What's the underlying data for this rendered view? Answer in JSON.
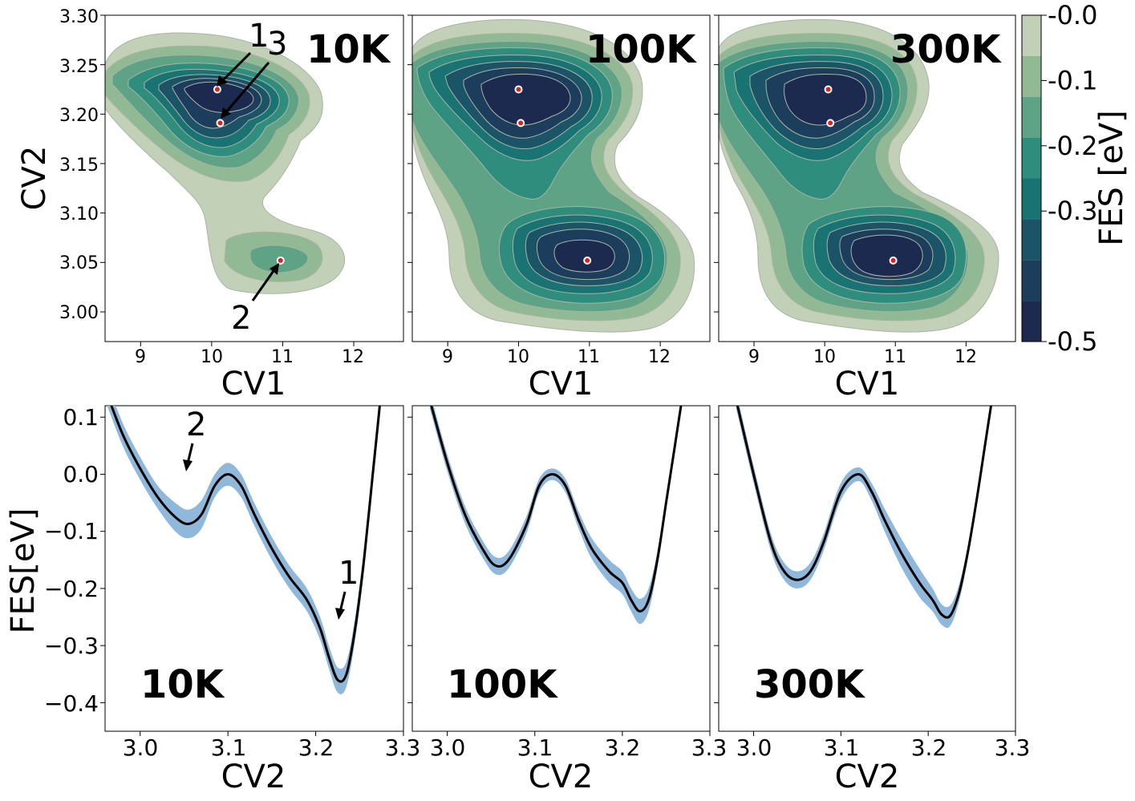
{
  "colorbar": {
    "label": "FES [eV]",
    "ticks": [
      {
        "label": "-0.0",
        "value": 0.0
      },
      {
        "label": "-0.1",
        "value": -0.1
      },
      {
        "label": "-0.2",
        "value": -0.2
      },
      {
        "label": "-0.3",
        "value": -0.3
      },
      {
        "label": "-0.5",
        "value": -0.5
      }
    ],
    "band_colors": [
      "#1b2a4e",
      "#1c3d5c",
      "#1b5466",
      "#1a7373",
      "#2e8d7d",
      "#5ea386",
      "#91b993",
      "#c3d0b8"
    ]
  },
  "chart_data": [
    {
      "type": "contour",
      "panel": "10K",
      "xlabel": "CV1",
      "ylabel": "CV2",
      "xlim": [
        8.5,
        12.7
      ],
      "ylim": [
        2.97,
        3.3
      ],
      "xticks": [
        "9",
        "10",
        "11",
        "12"
      ],
      "yticks": [
        "3.00",
        "3.05",
        "3.10",
        "3.15",
        "3.20",
        "3.25",
        "3.30"
      ],
      "minima": [
        {
          "label": "1",
          "cv1": 10.08,
          "cv2": 3.225
        },
        {
          "label": "3",
          "cv1": 10.12,
          "cv2": 3.191
        },
        {
          "label": "2",
          "cv1": 10.97,
          "cv2": 3.052
        }
      ]
    },
    {
      "type": "contour",
      "panel": "100K",
      "xlabel": "CV1",
      "xlim": [
        8.5,
        12.7
      ],
      "ylim": [
        2.97,
        3.3
      ],
      "xticks": [
        "9",
        "10",
        "11",
        "12"
      ],
      "minima": [
        {
          "cv1": 10.0,
          "cv2": 3.225
        },
        {
          "cv1": 10.03,
          "cv2": 3.191
        },
        {
          "cv1": 10.97,
          "cv2": 3.052
        }
      ]
    },
    {
      "type": "contour",
      "panel": "300K",
      "xlabel": "CV1",
      "xlim": [
        8.5,
        12.7
      ],
      "ylim": [
        2.97,
        3.3
      ],
      "xticks": [
        "9",
        "10",
        "11",
        "12"
      ],
      "minima": [
        {
          "cv1": 10.05,
          "cv2": 3.225
        },
        {
          "cv1": 10.08,
          "cv2": 3.191
        },
        {
          "cv1": 10.97,
          "cv2": 3.052
        }
      ]
    },
    {
      "type": "line",
      "panel": "10K",
      "xlabel": "CV2",
      "ylabel": "FES[eV]",
      "xlim": [
        2.96,
        3.3
      ],
      "ylim": [
        -0.45,
        0.12
      ],
      "xticks": [
        "3.0",
        "3.1",
        "3.2",
        "3.3"
      ],
      "yticks": [
        "0.1",
        "0.0",
        "−0.1",
        "−0.2",
        "−0.3",
        "−0.4"
      ],
      "annotations": [
        {
          "text": "2",
          "x": 3.055
        },
        {
          "text": "1",
          "x": 3.228
        }
      ],
      "x": [
        2.96,
        2.98,
        3.0,
        3.02,
        3.04,
        3.055,
        3.07,
        3.085,
        3.1,
        3.115,
        3.13,
        3.15,
        3.17,
        3.19,
        3.205,
        3.215,
        3.225,
        3.235,
        3.245,
        3.255,
        3.265,
        3.275
      ],
      "y": [
        0.15,
        0.07,
        0.01,
        -0.04,
        -0.075,
        -0.087,
        -0.07,
        -0.02,
        0.0,
        -0.02,
        -0.07,
        -0.13,
        -0.18,
        -0.22,
        -0.27,
        -0.32,
        -0.36,
        -0.35,
        -0.27,
        -0.15,
        0.0,
        0.15
      ],
      "band": [
        0.02,
        0.02,
        0.02,
        0.02,
        0.025,
        0.025,
        0.025,
        0.02,
        0.02,
        0.02,
        0.02,
        0.02,
        0.02,
        0.02,
        0.02,
        0.02,
        0.022,
        0.022,
        0.02,
        0.02,
        0.02,
        0.02
      ]
    },
    {
      "type": "line",
      "panel": "100K",
      "xlabel": "CV2",
      "xlim": [
        2.96,
        3.3
      ],
      "ylim": [
        -0.45,
        0.12
      ],
      "xticks": [
        "3.0",
        "3.1",
        "3.2",
        "3.3"
      ],
      "x": [
        2.98,
        3.0,
        3.02,
        3.04,
        3.055,
        3.07,
        3.09,
        3.105,
        3.12,
        3.135,
        3.15,
        3.165,
        3.185,
        3.2,
        3.21,
        3.22,
        3.23,
        3.24,
        3.25,
        3.26,
        3.27
      ],
      "y": [
        0.13,
        0.02,
        -0.07,
        -0.13,
        -0.16,
        -0.15,
        -0.09,
        -0.02,
        0.0,
        -0.02,
        -0.08,
        -0.13,
        -0.17,
        -0.19,
        -0.22,
        -0.24,
        -0.22,
        -0.15,
        -0.05,
        0.05,
        0.15
      ],
      "band": [
        0.015,
        0.015,
        0.015,
        0.015,
        0.015,
        0.015,
        0.015,
        0.012,
        0.01,
        0.012,
        0.015,
        0.018,
        0.02,
        0.02,
        0.02,
        0.022,
        0.02,
        0.015,
        0.012,
        0.012,
        0.012
      ]
    },
    {
      "type": "line",
      "panel": "300K",
      "xlabel": "CV2",
      "xlim": [
        2.96,
        3.3
      ],
      "ylim": [
        -0.45,
        0.12
      ],
      "xticks": [
        "3.0",
        "3.1",
        "3.2",
        "3.3"
      ],
      "x": [
        2.98,
        3.0,
        3.02,
        3.035,
        3.05,
        3.065,
        3.08,
        3.1,
        3.12,
        3.135,
        3.15,
        3.17,
        3.19,
        3.205,
        3.215,
        3.225,
        3.235,
        3.245,
        3.255,
        3.265,
        3.275
      ],
      "y": [
        0.13,
        0.0,
        -0.12,
        -0.17,
        -0.185,
        -0.17,
        -0.12,
        -0.03,
        0.0,
        -0.03,
        -0.08,
        -0.14,
        -0.19,
        -0.22,
        -0.245,
        -0.248,
        -0.21,
        -0.14,
        -0.05,
        0.05,
        0.15
      ],
      "band": [
        0.015,
        0.015,
        0.015,
        0.015,
        0.015,
        0.015,
        0.015,
        0.015,
        0.012,
        0.015,
        0.02,
        0.025,
        0.025,
        0.02,
        0.018,
        0.018,
        0.015,
        0.012,
        0.012,
        0.012,
        0.012
      ]
    }
  ]
}
